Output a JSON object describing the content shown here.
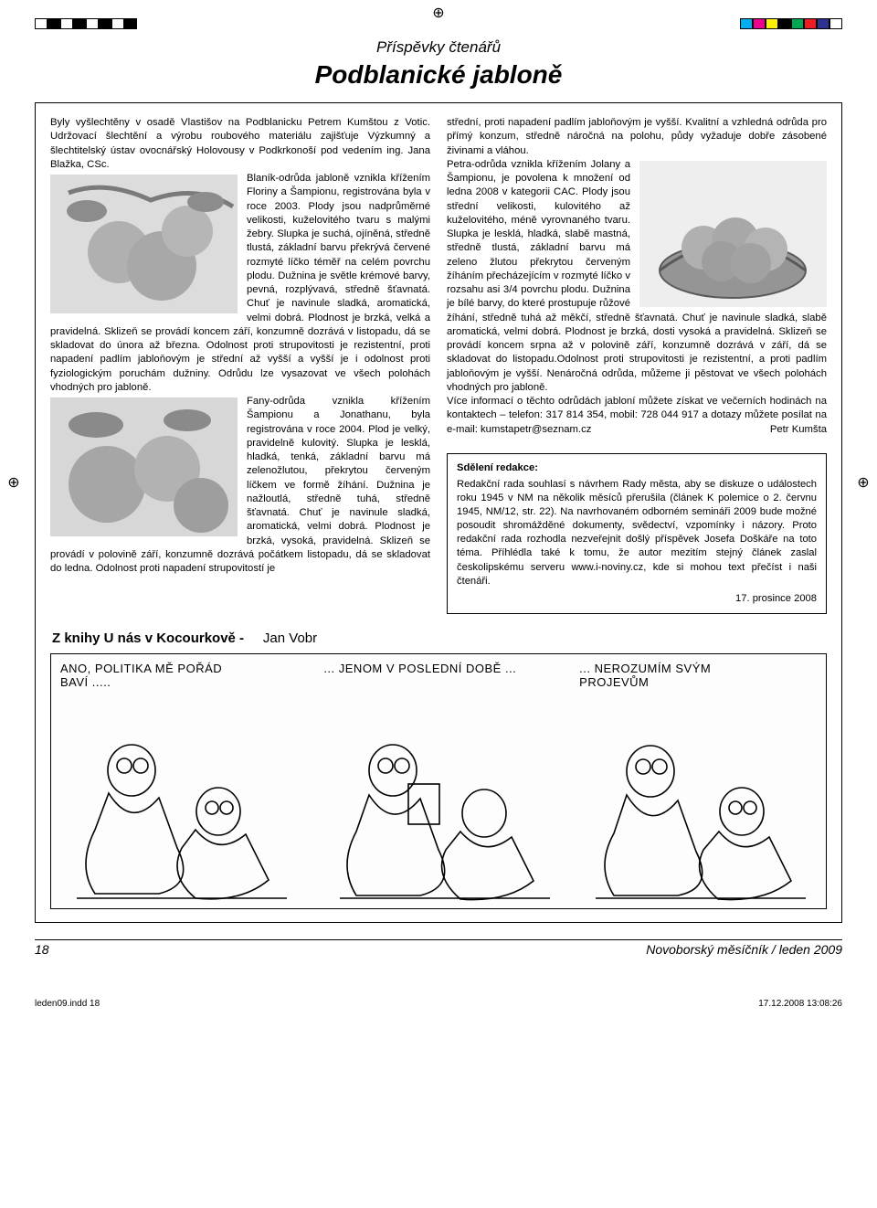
{
  "registration_colors_left": [
    "#ffffff",
    "#000000",
    "#ffffff",
    "#000000",
    "#ffffff",
    "#000000",
    "#ffffff",
    "#000000"
  ],
  "registration_colors_right": [
    "#00aeef",
    "#ec008c",
    "#fff200",
    "#000000",
    "#00a651",
    "#ed1c24",
    "#2e3192",
    "#ffffff"
  ],
  "section_label": "Příspěvky čtenářů",
  "main_title": "Podblanické jabloně",
  "left_para_1": "Byly vyšlechtěny v osadě Vlastišov na Podblanicku Petrem Kumštou z Votic. Udržovací šlechtění a výrobu roubového materiálu zajišťuje Výzkumný a šlechtitelský ústav ovocnářský Holovousy v Podkrkonoší pod vedením ing. Jana Blažka, CSc.",
  "left_para_2": "Blaník-odrůda jabloně vznikla křížením Floriny a Šampionu, registrována byla v roce 2003. Plody jsou nadprůměrné velikosti, kuželovitého tvaru s malými žebry. Slupka je suchá, ojíněná, středně tlustá, základní barvu překrývá červené rozmyté líčko téměř na celém povrchu plodu. Dužnina je světle krémové barvy, pevná, rozplývavá, středně šťavnatá. Chuť je navinule sladká, aromatická, velmi dobrá. Plodnost je brzká, velká a pravidelná. Sklizeň se provádí koncem září, konzumně dozrává v listopadu, dá se skladovat do února až března. Odolnost proti strupovitosti je rezistentní, proti napadení padlím jabloňovým je střední až vyšší a vyšší je i odolnost proti fyziologickým poruchám dužniny. Odrůdu lze vysazovat ve všech polohách vhodných pro jabloně.",
  "left_para_3": "Fany-odrůda vznikla křížením Šampionu a Jonathanu, byla registrována v roce 2004. Plod je velký, pravidelně kulovitý. Slupka je lesklá, hladká, tenká, základní barvu má zelenožlutou, překrytou červeným líčkem ve formě žíhání. Dužnina je nažloutlá, středně tuhá, středně šťavnatá. Chuť je navinule sladká, aromatická, velmi dobrá. Plodnost je brzká, vysoká, pravidelná. Sklizeň se provádí v polovině září, konzumně dozrává počátkem listopadu, dá se skladovat do ledna. Odolnost proti napadení strupovitostí je",
  "right_para_1": "střední, proti napadení padlím jabloňovým je vyšší. Kvalitní a vzhledná odrůda pro přímý konzum, středně náročná na polohu, půdy vyžaduje dobře zásobené živinami a vláhou.",
  "right_para_2": "Petra-odrůda vznikla křížením Jolany a Šampionu, je povolena k množení od ledna 2008 v kategorii CAC. Plody jsou střední velikosti, kulovitého až kuželovitého, méně vyrovnaného tvaru. Slupka je lesklá, hladká, slabě mastná, středně tlustá, základní barvu má zeleno žlutou překrytou červeným žíháním přecházejícím v rozmyté líčko v rozsahu asi 3/4 povrchu plodu. Dužnina je bílé barvy, do které prostupuje růžové žíhání, středně tuhá až měkčí, středně šťavnatá. Chuť je navinule sladká, slabě aromatická, velmi dobrá. Plodnost je brzká, dosti vysoká a pravidelná. Sklizeň se provádí koncem srpna až v polovině září, konzumně dozrává v září, dá se skladovat do listopadu.Odolnost proti strupovitosti je rezistentní, a proti padlím jabloňovým je vyšší. Nenáročná odrůda, můžeme ji pěstovat ve všech polohách vhodných pro jabloně.",
  "right_para_3": "Více informací o těchto odrůdách jabloní můžete získat ve večerních hodinách na kontaktech – telefon: 317 814 354, mobil: 728 044 917 a dotazy můžete posílat na e-mail: kumstapetr@seznam.cz",
  "right_signature": "Petr Kumšta",
  "sdeleni_heading": "Sdělení redakce:",
  "sdeleni_body": "Redakční rada souhlasí s návrhem Rady města, aby se diskuze o událostech roku 1945 v NM na několik měsíců přerušila (článek K polemice o 2. červnu 1945, NM/12, str. 22). Na navrhovaném odborném semináři 2009 bude možné posoudit shromážděné dokumenty, svědectví, vzpomínky i názory. Proto redakční rada rozhodla nezveřejnit došlý příspěvek Josefa Doškáře na toto téma. Příhlédla také k tomu, že autor mezitím stejný článek zaslal českolipskému serveru www.i-noviny.cz, kde si mohou text přečíst i naši čtenáři.",
  "sdeleni_date": "17. prosince 2008",
  "book_heading_strong": "Z knihy  U nás v Kocourkově  -",
  "book_heading_author": "Jan Vobr",
  "comic_caption_1": "ANO, POLITIKA MĚ POŘÁD\nBAVÍ .....",
  "comic_caption_2": "... JENOM V POSLEDNÍ DOBĚ ...",
  "comic_caption_3": "... NEROZUMÍM SVÝM\nPROJEVŮM",
  "page_number": "18",
  "publication": "Novoborský měsíčník / leden 2009",
  "indd_file": "leden09.indd   18",
  "indd_timestamp": "17.12.2008   13:08:26",
  "photo_colors": {
    "apple_fill": "#b0b0b0",
    "apple_highlight": "#e6e6e6",
    "leaf_fill": "#8c8c8c",
    "basket_fill": "#959595",
    "basket_stroke": "#5a5a5a",
    "sky": "#dedede"
  }
}
